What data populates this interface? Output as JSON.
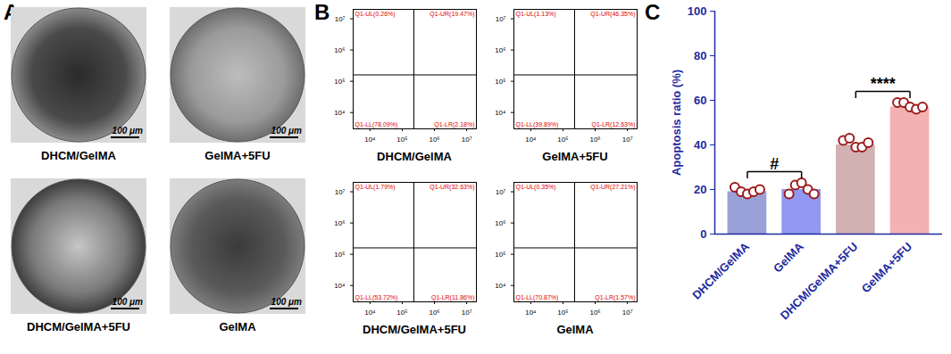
{
  "panel_a": {
    "panel": "A",
    "scale_bar": "100 μm",
    "images": [
      "DHCM/GelMA",
      "GelMA+5FU",
      "DHCM/GelMA+5FU",
      "GelMA"
    ]
  },
  "panel_b": {
    "panel": "B",
    "log": true,
    "xlim": [
      3000,
      20000000
    ],
    "ylim": [
      3000,
      20000000
    ],
    "xticks": [
      {
        "value": 10000,
        "label": "10⁴"
      },
      {
        "value": 100000,
        "label": "10⁵"
      },
      {
        "value": 1000000,
        "label": "10⁶"
      },
      {
        "value": 10000000,
        "label": "10⁷"
      }
    ],
    "yticks": [
      {
        "value": 10000,
        "label": "10⁴"
      },
      {
        "value": 100000,
        "label": "10⁵"
      },
      {
        "value": 1000000,
        "label": "10⁶"
      },
      {
        "value": 10000000,
        "label": "10⁷"
      }
    ],
    "gate": {
      "x": 230000,
      "y": 160000
    },
    "plots": [
      {
        "title": "DHCM/GelMA",
        "quadrant_labels": {
          "UL": "Q1-UL(0.26%)",
          "UR": "Q1-UR(19.47%)",
          "LL": "Q1-LL(78.09%)",
          "LR": "Q1-LR(2.18%)"
        }
      },
      {
        "title": "GelMA+5FU",
        "quadrant_labels": {
          "UL": "Q1-UL(1.13%)",
          "UR": "Q1-UR(46.35%)",
          "LL": "Q1-LL(39.89%)",
          "LR": "Q1-LR(12.63%)"
        }
      },
      {
        "title": "DHCM/GelMA+5FU",
        "quadrant_labels": {
          "UL": "Q1-UL(1.79%)",
          "UR": "Q1-UR(32.63%)",
          "LL": "Q1-LL(53.72%)",
          "LR": "Q1-LR(11.86%)"
        }
      },
      {
        "title": "GelMA",
        "quadrant_labels": {
          "UL": "Q1-UL(0.35%)",
          "UR": "Q1-UR(27.21%)",
          "LL": "Q1-LL(70.87%)",
          "LR": "Q1-LR(1.57%)"
        }
      }
    ]
  },
  "chart_data": {
    "type": "bar",
    "panel": "C",
    "ylabel": "Apoptosis ratio (%)",
    "categories": [
      "DHCM/GelMA",
      "GelMA",
      "DHCM/GelMA+5FU",
      "GelMA+5FU"
    ],
    "values": [
      19,
      20,
      40,
      57
    ],
    "colors": [
      "#8890d2",
      "#7d86ee",
      "#caa3a6",
      "#f2a3a5"
    ],
    "points": [
      [
        21,
        19,
        18,
        19,
        20
      ],
      [
        18,
        22,
        23,
        20,
        18
      ],
      [
        42,
        43,
        39,
        39,
        41
      ],
      [
        59,
        59,
        57,
        56,
        57
      ]
    ],
    "ylim": [
      0,
      100
    ],
    "yticks": [
      0,
      20,
      40,
      60,
      80,
      100
    ],
    "grid": false,
    "annotations": [
      {
        "between": [
          "DHCM/GelMA",
          "GelMA"
        ],
        "text": "#"
      },
      {
        "between": [
          "DHCM/GelMA+5FU",
          "GelMA+5FU"
        ],
        "text": "****"
      }
    ]
  }
}
